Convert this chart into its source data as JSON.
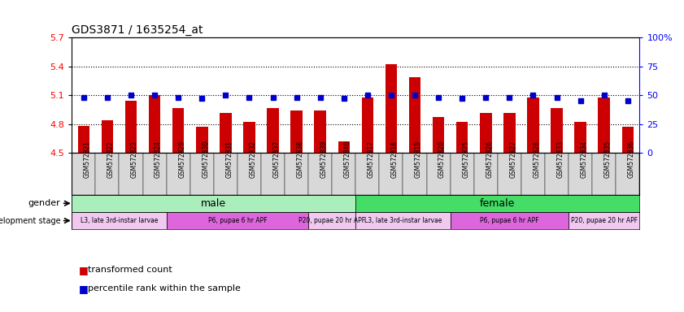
{
  "title": "GDS3871 / 1635254_at",
  "samples": [
    "GSM572821",
    "GSM572822",
    "GSM572823",
    "GSM572824",
    "GSM572829",
    "GSM572830",
    "GSM572831",
    "GSM572832",
    "GSM572837",
    "GSM572838",
    "GSM572839",
    "GSM572840",
    "GSM572817",
    "GSM572818",
    "GSM572819",
    "GSM572820",
    "GSM572825",
    "GSM572826",
    "GSM572827",
    "GSM572828",
    "GSM572833",
    "GSM572834",
    "GSM572835",
    "GSM572836"
  ],
  "transformed_count": [
    4.78,
    4.84,
    5.04,
    5.1,
    4.97,
    4.77,
    4.92,
    4.82,
    4.97,
    4.94,
    4.94,
    4.62,
    5.08,
    5.42,
    5.29,
    4.87,
    4.82,
    4.92,
    4.92,
    5.08,
    4.97,
    4.82,
    5.08,
    4.77
  ],
  "percentile_rank": [
    48,
    48,
    50,
    50,
    48,
    47,
    50,
    48,
    48,
    48,
    48,
    47,
    50,
    50,
    50,
    48,
    47,
    48,
    48,
    50,
    48,
    45,
    50,
    45
  ],
  "ylim_left": [
    4.5,
    5.7
  ],
  "ylim_right": [
    0,
    100
  ],
  "yticks_left": [
    4.5,
    4.8,
    5.1,
    5.4,
    5.7
  ],
  "yticks_right": [
    0,
    25,
    50,
    75,
    100
  ],
  "ytick_right_labels": [
    "0",
    "25",
    "50",
    "75",
    "100%"
  ],
  "bar_color": "#cc0000",
  "dot_color": "#0000cc",
  "gender_groups": [
    {
      "label": "male",
      "start": 0,
      "end": 12,
      "color": "#aaeebb"
    },
    {
      "label": "female",
      "start": 12,
      "end": 24,
      "color": "#44dd66"
    }
  ],
  "dev_stages": [
    {
      "label": "L3, late 3rd-instar larvae",
      "start": 0,
      "end": 4,
      "color": "#f0c8f0"
    },
    {
      "label": "P6, pupae 6 hr APF",
      "start": 4,
      "end": 10,
      "color": "#dd66dd"
    },
    {
      "label": "P20, pupae 20 hr APF",
      "start": 10,
      "end": 12,
      "color": "#f0c8f0"
    },
    {
      "label": "L3, late 3rd-instar larvae",
      "start": 12,
      "end": 16,
      "color": "#f0c8f0"
    },
    {
      "label": "P6, pupae 6 hr APF",
      "start": 16,
      "end": 21,
      "color": "#dd66dd"
    },
    {
      "label": "P20, pupae 20 hr APF",
      "start": 21,
      "end": 24,
      "color": "#f0c8f0"
    }
  ],
  "legend_red_label": "transformed count",
  "legend_blue_label": "percentile rank within the sample"
}
